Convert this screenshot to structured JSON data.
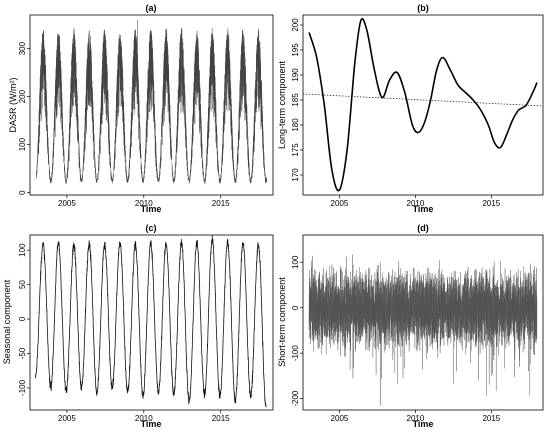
{
  "chart_data": [
    {
      "id": "a",
      "type": "line",
      "title": "(a)",
      "xlabel": "Time",
      "ylabel": "DASR (W/m²)",
      "xlim": [
        2002.6,
        2018.4
      ],
      "ylim": [
        -5,
        370
      ],
      "xticks": [
        2005,
        2010,
        2015
      ],
      "yticks": [
        0,
        100,
        200,
        300
      ],
      "series": [
        {
          "style": "daily, dark grey",
          "start_year": 2003,
          "end_year": 2018,
          "annual_min_approx": 20,
          "annual_max_approx": 335,
          "peak_month": "June",
          "spike": {
            "x": 2009.6,
            "y": 360
          },
          "peak_x": [
            2003.45,
            2004.45,
            2005.45,
            2006.45,
            2007.45,
            2008.45,
            2009.45,
            2010.45,
            2011.45,
            2012.45,
            2013.45,
            2014.45,
            2015.45,
            2016.45,
            2017.45
          ],
          "peak_y": [
            340,
            345,
            338,
            341,
            336,
            341,
            340,
            338,
            342,
            336,
            340,
            343,
            338,
            341,
            335
          ]
        }
      ]
    },
    {
      "id": "b",
      "type": "line",
      "title": "(b)",
      "xlabel": "Time",
      "ylabel": "Long-term component",
      "xlim": [
        2002.6,
        2018.4
      ],
      "ylim": [
        166,
        202
      ],
      "xticks": [
        2005,
        2010,
        2015
      ],
      "yticks": [
        170,
        175,
        180,
        185,
        190,
        195,
        200
      ],
      "series": [
        {
          "style": "solid",
          "x": [
            2003.0,
            2003.5,
            2004.0,
            2004.5,
            2005.0,
            2005.5,
            2006.0,
            2006.4,
            2006.8,
            2007.3,
            2007.8,
            2008.3,
            2008.8,
            2009.3,
            2009.8,
            2010.2,
            2010.6,
            2011.0,
            2011.4,
            2011.8,
            2012.3,
            2012.8,
            2013.3,
            2013.8,
            2014.3,
            2014.8,
            2015.2,
            2015.6,
            2016.0,
            2016.4,
            2016.8,
            2017.3,
            2017.8,
            2018.0
          ],
          "y": [
            198.5,
            193.5,
            184.0,
            171.0,
            167.0,
            175.0,
            192.0,
            200.8,
            199.0,
            191.0,
            185.5,
            189.0,
            190.5,
            186.5,
            180.0,
            178.5,
            180.5,
            185.0,
            191.0,
            193.5,
            191.0,
            188.0,
            186.5,
            185.0,
            183.0,
            180.0,
            176.5,
            175.5,
            178.0,
            181.0,
            183.0,
            184.0,
            187.0,
            188.5
          ]
        },
        {
          "style": "dotted trend",
          "x": [
            2002.6,
            2018.4
          ],
          "y": [
            186.2,
            183.8
          ]
        }
      ]
    },
    {
      "id": "c",
      "type": "line",
      "title": "(c)",
      "xlabel": "Time",
      "ylabel": "Seasonal component",
      "xlim": [
        2002.6,
        2018.4
      ],
      "ylim": [
        -132,
        122
      ],
      "xticks": [
        2005,
        2010,
        2015
      ],
      "yticks": [
        -100,
        -50,
        0,
        50,
        100
      ],
      "series": [
        {
          "style": "black line",
          "start_year": 2003,
          "end_year": 2018,
          "peak_x": [
            2003.45,
            2004.45,
            2005.45,
            2006.45,
            2007.45,
            2008.45,
            2009.45,
            2010.45,
            2011.45,
            2012.45,
            2013.45,
            2014.45,
            2015.45,
            2016.45,
            2017.45
          ],
          "peak_y": [
            108,
            110,
            107,
            110,
            107,
            110,
            108,
            110,
            109,
            112,
            110,
            115,
            112,
            110,
            108
          ],
          "trough_x": [
            2002.95,
            2003.95,
            2004.95,
            2005.95,
            2006.95,
            2007.95,
            2008.95,
            2009.95,
            2010.95,
            2011.95,
            2012.95,
            2013.95,
            2014.95,
            2015.95,
            2016.95,
            2017.95
          ],
          "trough_y": [
            -82,
            -98,
            -105,
            -100,
            -108,
            -100,
            -105,
            -112,
            -107,
            -110,
            -120,
            -110,
            -112,
            -118,
            -112,
            -128
          ]
        }
      ]
    },
    {
      "id": "d",
      "type": "line",
      "title": "(d)",
      "xlabel": "Time",
      "ylabel": "Short-term component",
      "xlim": [
        2002.6,
        2018.4
      ],
      "ylim": [
        -225,
        160
      ],
      "xticks": [
        2005,
        2010,
        2015
      ],
      "yticks": [
        -200,
        -100,
        0,
        100
      ],
      "series": [
        {
          "style": "daily residual, dark grey",
          "start_year": 2003,
          "end_year": 2018,
          "typical_range": [
            -110,
            100
          ],
          "extreme_max": 150,
          "extreme_min": -215
        }
      ]
    }
  ]
}
